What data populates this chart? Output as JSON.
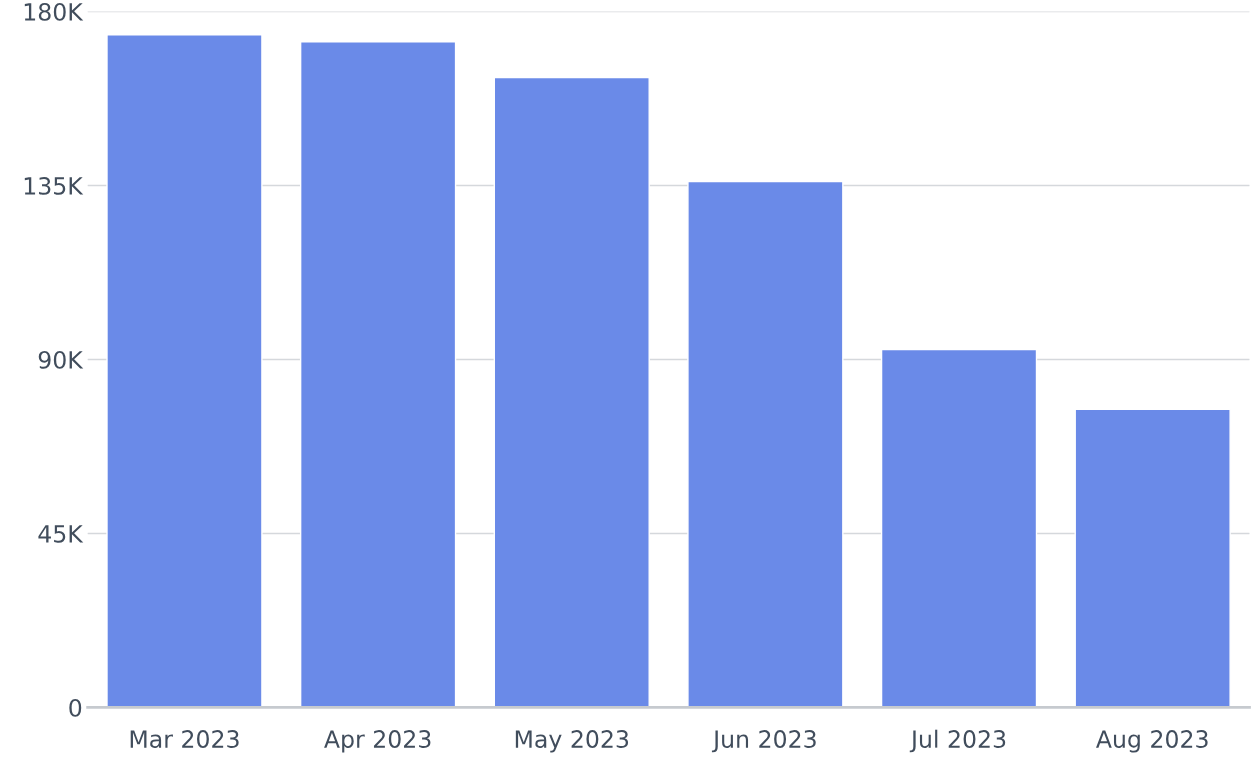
{
  "chart_data": {
    "type": "bar",
    "categories": [
      "Mar 2023",
      "Apr 2023",
      "May 2023",
      "Jun 2023",
      "Jul 2023",
      "Aug 2023"
    ],
    "values": [
      174000,
      172200,
      162900,
      136000,
      92600,
      77100
    ],
    "color": "#6a8ae8",
    "ylim": [
      0,
      180000
    ],
    "yticks": [
      {
        "value": 0,
        "label": "0"
      },
      {
        "value": 45000,
        "label": "45K"
      },
      {
        "value": 90000,
        "label": "90K"
      },
      {
        "value": 135000,
        "label": "135K"
      },
      {
        "value": 180000,
        "label": "180K"
      }
    ],
    "grid": "y"
  }
}
